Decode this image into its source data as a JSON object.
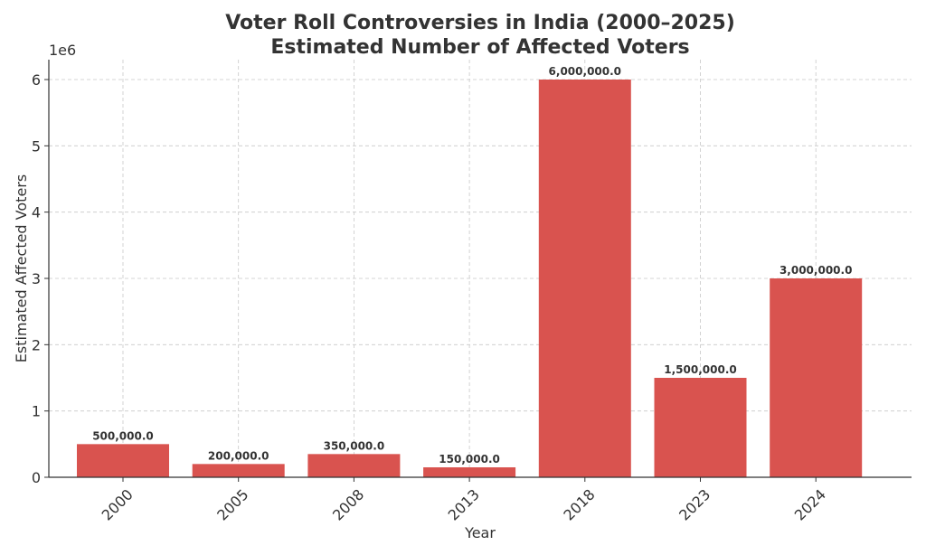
{
  "chart_data": {
    "type": "bar",
    "title_line1": "Voter Roll Controversies in India (2000–2025)",
    "title_line2": "Estimated Number of Affected Voters",
    "xlabel": "Year",
    "ylabel": "Estimated Affected Voters",
    "y_offset_label": "1e6",
    "categories": [
      "2000",
      "2005",
      "2008",
      "2013",
      "2018",
      "2023",
      "2024"
    ],
    "values": [
      500000,
      200000,
      350000,
      150000,
      6000000,
      1500000,
      3000000
    ],
    "value_labels": [
      "500,000.0",
      "200,000.0",
      "350,000.0",
      "150,000.0",
      "6,000,000.0",
      "1,500,000.0",
      "3,000,000.0"
    ],
    "y_ticks": [
      0,
      1,
      2,
      3,
      4,
      5,
      6
    ],
    "y_tick_labels": [
      "0",
      "1",
      "2",
      "3",
      "4",
      "5",
      "6"
    ],
    "y_scale": 1000000,
    "ylim": [
      0,
      6300000
    ],
    "grid": true,
    "bar_color": "#d9534f"
  }
}
